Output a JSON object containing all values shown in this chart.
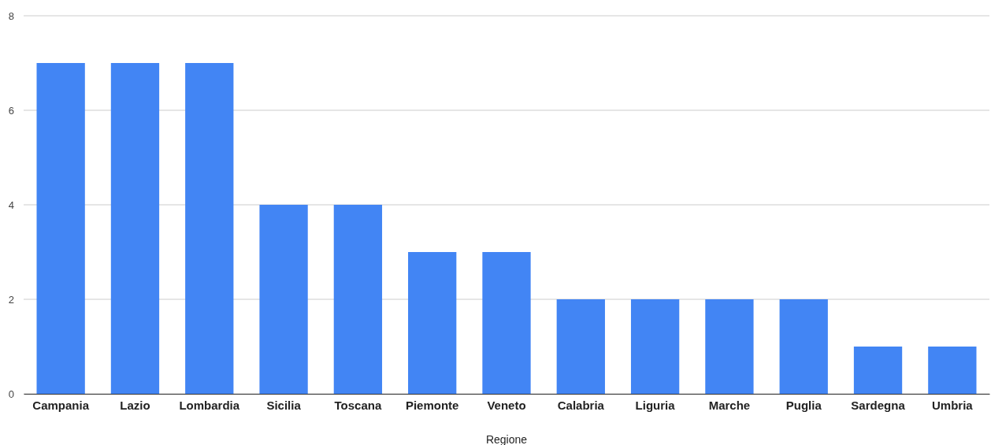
{
  "chart_data": {
    "type": "bar",
    "xlabel": "Regione",
    "categories": [
      "Campania",
      "Lazio",
      "Lombardia",
      "Sicilia",
      "Toscana",
      "Piemonte",
      "Veneto",
      "Calabria",
      "Liguria",
      "Marche",
      "Puglia",
      "Sardegna",
      "Umbria"
    ],
    "values": [
      7,
      7,
      7,
      4,
      4,
      3,
      3,
      2,
      2,
      2,
      2,
      1,
      1
    ],
    "color": "#4285f4",
    "ylim": [
      0,
      8
    ],
    "yticks": [
      0,
      2,
      4,
      6,
      8
    ],
    "grid": "y"
  }
}
